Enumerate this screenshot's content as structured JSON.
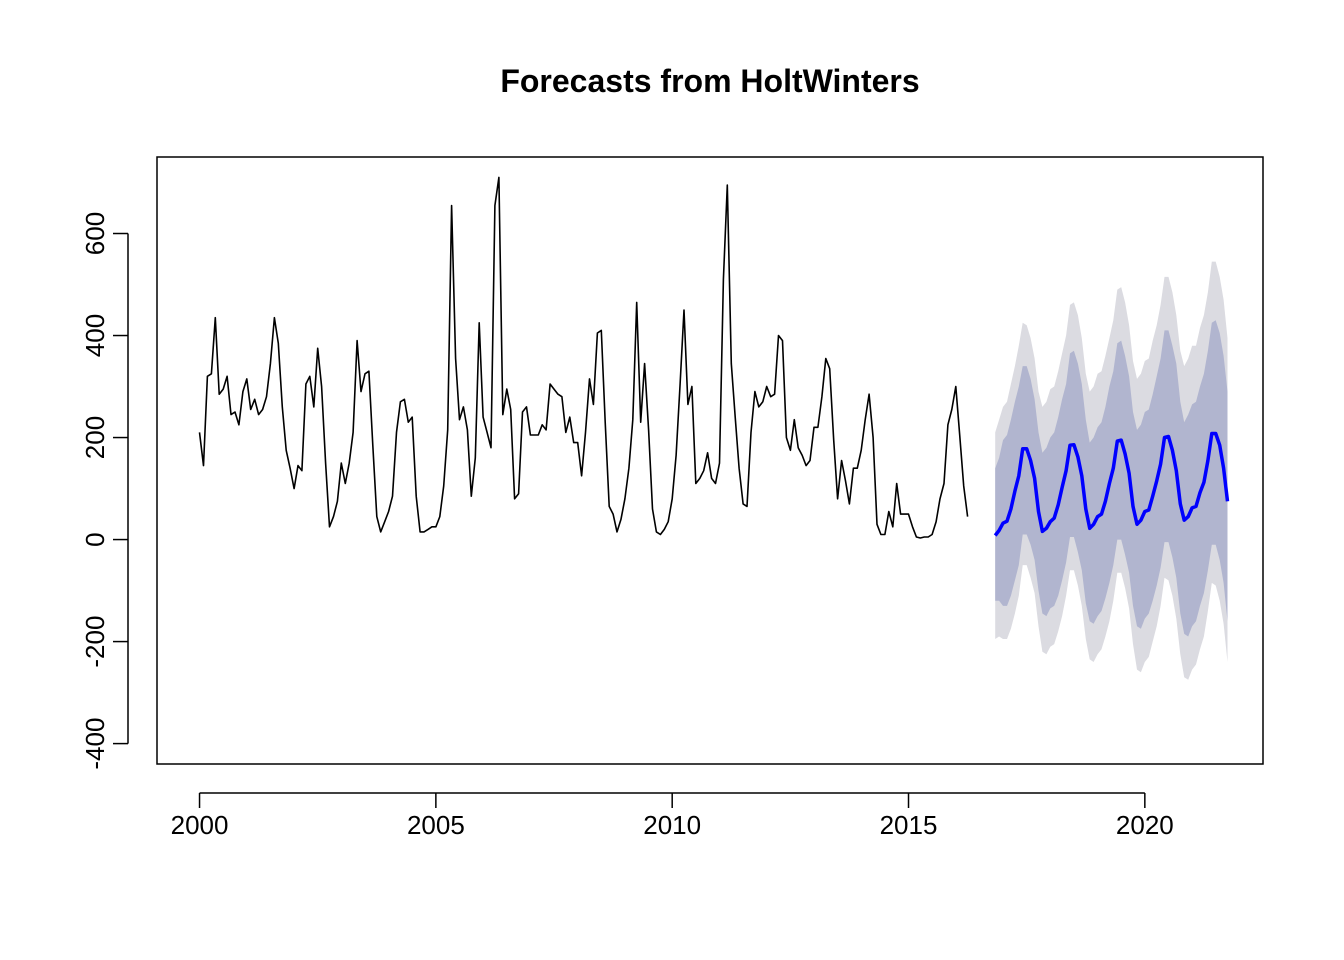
{
  "chart_data": {
    "type": "line",
    "title": "Forecasts from HoltWinters",
    "xlabel": "",
    "ylabel": "",
    "xlim": [
      1999.1,
      2022.5
    ],
    "ylim": [
      -440,
      750
    ],
    "x_ticks": [
      2000,
      2005,
      2010,
      2015,
      2020
    ],
    "y_ticks": [
      -400,
      -200,
      0,
      200,
      400,
      600
    ],
    "grid": false,
    "legend": "none",
    "colors": {
      "observed": "#000000",
      "forecast": "#0000ff",
      "band_80": "#b1b5cf",
      "band_95": "#dbdbe1"
    },
    "series": [
      {
        "role": "observed",
        "start": 2000.0,
        "frequency": 12,
        "values": [
          210,
          145,
          320,
          325,
          435,
          285,
          295,
          320,
          245,
          250,
          225,
          290,
          315,
          255,
          275,
          245,
          255,
          280,
          345,
          435,
          385,
          260,
          175,
          140,
          100,
          145,
          135,
          305,
          320,
          260,
          375,
          300,
          150,
          25,
          45,
          75,
          150,
          110,
          150,
          210,
          390,
          290,
          325,
          330,
          185,
          45,
          15,
          35,
          55,
          85,
          210,
          270,
          275,
          230,
          240,
          85,
          15,
          15,
          20,
          25,
          25,
          45,
          105,
          215,
          655,
          355,
          235,
          260,
          215,
          85,
          160,
          425,
          240,
          210,
          180,
          655,
          710,
          245,
          295,
          255,
          80,
          90,
          250,
          260,
          205,
          205,
          205,
          225,
          215,
          305,
          295,
          285,
          280,
          210,
          240,
          190,
          190,
          125,
          210,
          315,
          265,
          405,
          410,
          230,
          65,
          50,
          15,
          40,
          80,
          140,
          235,
          465,
          230,
          345,
          215,
          60,
          15,
          10,
          20,
          35,
          80,
          165,
          305,
          450,
          265,
          300,
          110,
          120,
          135,
          170,
          120,
          110,
          150,
          510,
          695,
          345,
          240,
          140,
          70,
          65,
          210,
          290,
          260,
          270,
          300,
          280,
          285,
          400,
          390,
          200,
          175,
          235,
          180,
          165,
          145,
          155,
          220,
          220,
          280,
          355,
          335,
          195,
          80,
          155,
          115,
          70,
          140,
          140,
          175,
          235,
          285,
          200,
          30,
          10,
          10,
          55,
          25,
          110,
          50,
          50,
          50,
          25,
          5,
          3,
          5,
          5,
          10,
          35,
          80,
          110,
          225,
          255,
          300,
          205,
          105,
          45
        ]
      },
      {
        "role": "forecast",
        "start": 2016.8333,
        "frequency": 12,
        "values": [
          8,
          18,
          32,
          36,
          60,
          95,
          125,
          178,
          178,
          155,
          120,
          55,
          16,
          22,
          35,
          42,
          68,
          102,
          135,
          185,
          186,
          162,
          125,
          60,
          22,
          30,
          45,
          50,
          75,
          110,
          140,
          193,
          195,
          168,
          130,
          65,
          30,
          38,
          55,
          58,
          85,
          115,
          148,
          200,
          202,
          175,
          135,
          70,
          38,
          45,
          62,
          65,
          92,
          112,
          155,
          208,
          208,
          185,
          140,
          75
        ]
      },
      {
        "role": "band_80",
        "start": 2016.8333,
        "frequency": 12,
        "upper": [
          140,
          160,
          195,
          205,
          235,
          270,
          300,
          340,
          340,
          315,
          275,
          210,
          170,
          180,
          200,
          210,
          240,
          275,
          305,
          365,
          370,
          345,
          305,
          235,
          190,
          200,
          220,
          230,
          260,
          300,
          330,
          385,
          390,
          360,
          320,
          250,
          215,
          225,
          250,
          255,
          285,
          320,
          355,
          410,
          410,
          380,
          345,
          270,
          230,
          245,
          265,
          270,
          300,
          325,
          370,
          425,
          430,
          405,
          360,
          290
        ],
        "lower": [
          -120,
          -120,
          -130,
          -130,
          -110,
          -80,
          -50,
          10,
          10,
          -10,
          -40,
          -100,
          -145,
          -150,
          -135,
          -130,
          -110,
          -80,
          -45,
          5,
          5,
          -25,
          -60,
          -125,
          -160,
          -165,
          -150,
          -140,
          -115,
          -85,
          -50,
          0,
          0,
          -30,
          -65,
          -130,
          -170,
          -175,
          -155,
          -145,
          -120,
          -90,
          -55,
          -5,
          -5,
          -35,
          -75,
          -145,
          -185,
          -190,
          -170,
          -160,
          -130,
          -105,
          -60,
          -10,
          -10,
          -40,
          -85,
          -160
        ]
      },
      {
        "role": "band_95",
        "start": 2016.8333,
        "frequency": 12,
        "upper": [
          210,
          235,
          260,
          270,
          305,
          340,
          380,
          425,
          420,
          395,
          355,
          290,
          260,
          270,
          295,
          300,
          330,
          365,
          400,
          460,
          465,
          440,
          395,
          325,
          290,
          300,
          325,
          330,
          360,
          395,
          430,
          490,
          495,
          465,
          420,
          350,
          315,
          325,
          350,
          355,
          390,
          420,
          460,
          515,
          515,
          485,
          440,
          370,
          340,
          355,
          380,
          380,
          415,
          440,
          485,
          545,
          545,
          515,
          470,
          395
        ],
        "lower": [
          -195,
          -190,
          -195,
          -195,
          -175,
          -145,
          -110,
          -50,
          -50,
          -75,
          -105,
          -170,
          -220,
          -225,
          -210,
          -205,
          -180,
          -150,
          -110,
          -60,
          -60,
          -90,
          -130,
          -195,
          -235,
          -240,
          -225,
          -215,
          -190,
          -160,
          -120,
          -65,
          -65,
          -95,
          -135,
          -205,
          -255,
          -260,
          -240,
          -230,
          -200,
          -170,
          -130,
          -75,
          -80,
          -110,
          -155,
          -225,
          -270,
          -275,
          -255,
          -245,
          -215,
          -190,
          -140,
          -85,
          -90,
          -120,
          -165,
          -240
        ]
      }
    ]
  }
}
